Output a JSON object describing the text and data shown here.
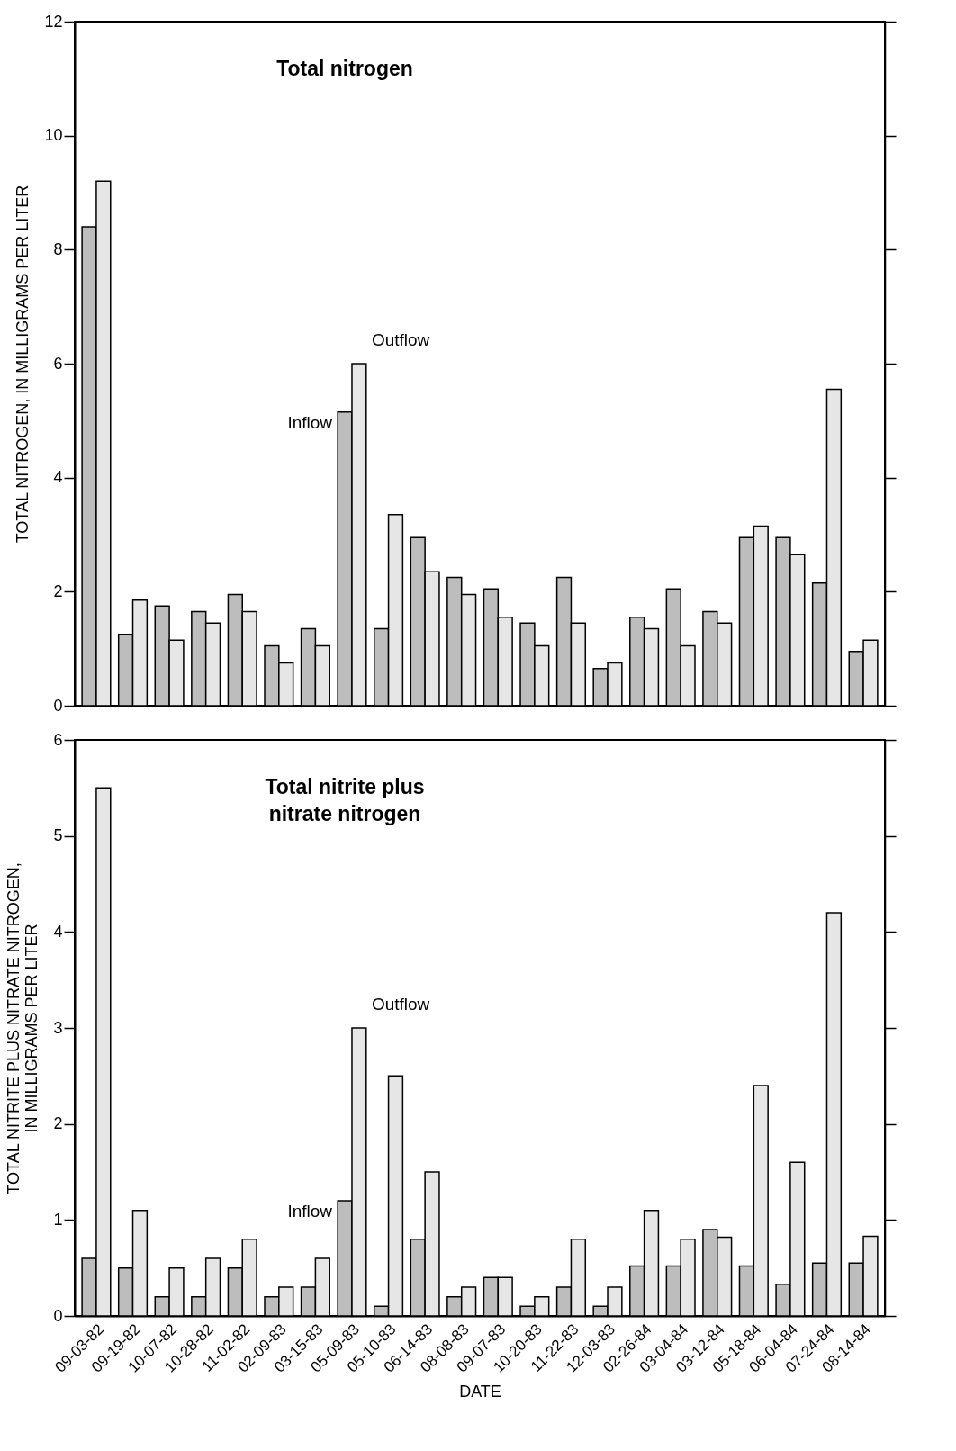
{
  "chart_data": [
    {
      "type": "bar",
      "title": "Total nitrogen",
      "ylabel": "TOTAL NITROGEN, IN MILLIGRAMS PER LITER",
      "categories": [
        "09-03-82",
        "09-19-82",
        "10-07-82",
        "10-28-82",
        "11-02-82",
        "02-09-83",
        "03-15-83",
        "05-09-83",
        "05-10-83",
        "06-14-83",
        "08-08-83",
        "09-07-83",
        "10-20-83",
        "11-22-83",
        "12-03-83",
        "02-26-84",
        "03-04-84",
        "03-12-84",
        "05-18-84",
        "06-04-84",
        "07-24-84",
        "08-14-84"
      ],
      "series": [
        {
          "name": "Inflow",
          "color": "#bdbdbd",
          "values": [
            8.4,
            1.25,
            1.75,
            1.65,
            1.95,
            1.05,
            1.35,
            5.15,
            1.35,
            2.95,
            2.25,
            2.05,
            1.45,
            2.25,
            0.65,
            1.55,
            2.05,
            1.65,
            2.95,
            2.95,
            2.15,
            0.95
          ]
        },
        {
          "name": "Outflow",
          "color": "#e6e6e6",
          "values": [
            9.2,
            1.85,
            1.15,
            1.45,
            1.65,
            0.75,
            1.05,
            6.0,
            3.35,
            2.35,
            1.95,
            1.55,
            1.05,
            1.45,
            0.75,
            1.35,
            1.05,
            1.45,
            3.15,
            2.65,
            5.55,
            1.15
          ]
        }
      ],
      "ylim": [
        0,
        12
      ],
      "yticks": [
        0,
        2,
        4,
        6,
        8,
        10,
        12
      ],
      "tick_labels": "y",
      "grid": false,
      "legend": false
    },
    {
      "type": "bar",
      "title": "Total nitrite plus\nnitrate nitrogen",
      "xlabel": "DATE",
      "ylabel": "TOTAL NITRITE PLUS NITRATE NITROGEN,\nIN MILLIGRAMS PER LITER",
      "categories": [
        "09-03-82",
        "09-19-82",
        "10-07-82",
        "10-28-82",
        "11-02-82",
        "02-09-83",
        "03-15-83",
        "05-09-83",
        "05-10-83",
        "06-14-83",
        "08-08-83",
        "09-07-83",
        "10-20-83",
        "11-22-83",
        "12-03-83",
        "02-26-84",
        "03-04-84",
        "03-12-84",
        "05-18-84",
        "06-04-84",
        "07-24-84",
        "08-14-84"
      ],
      "series": [
        {
          "name": "Inflow",
          "color": "#bdbdbd",
          "values": [
            0.6,
            0.5,
            0.2,
            0.2,
            0.5,
            0.2,
            0.3,
            1.2,
            0.1,
            0.8,
            0.2,
            0.4,
            0.1,
            0.3,
            0.1,
            0.52,
            0.52,
            0.9,
            0.52,
            0.33,
            0.55,
            0.55
          ]
        },
        {
          "name": "Outflow",
          "color": "#e6e6e6",
          "values": [
            5.5,
            1.1,
            0.5,
            0.6,
            0.8,
            0.3,
            0.6,
            3.0,
            2.5,
            1.5,
            0.3,
            0.4,
            0.2,
            0.8,
            0.3,
            1.1,
            0.8,
            0.82,
            2.4,
            1.6,
            4.2,
            0.83
          ]
        }
      ],
      "ylim": [
        0,
        6
      ],
      "yticks": [
        0,
        1,
        2,
        3,
        4,
        5,
        6
      ],
      "grid": false,
      "legend": false
    }
  ]
}
